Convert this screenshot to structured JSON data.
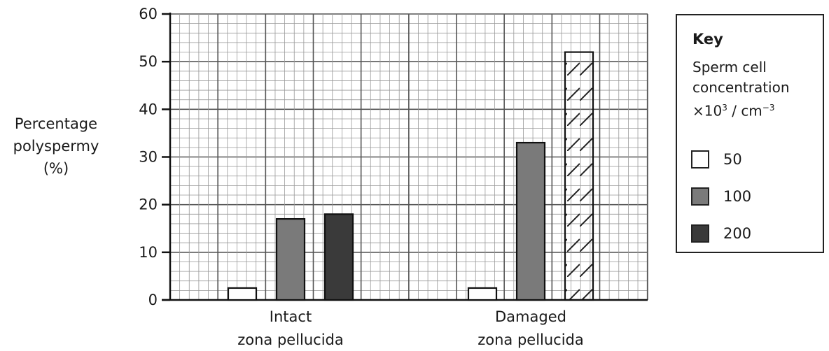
{
  "chart_data": {
    "type": "bar",
    "ylabel": [
      "Percentage",
      "polyspermy",
      "(%)"
    ],
    "ylim": [
      0,
      60
    ],
    "yticks": [
      0,
      10,
      20,
      30,
      40,
      50,
      60
    ],
    "categories": [
      [
        "Intact",
        "zona pellucida"
      ],
      [
        "Damaged",
        "zona pellucida"
      ]
    ],
    "series": [
      {
        "name": "50",
        "values": [
          2.5,
          2.5
        ],
        "fill": "#ffffff"
      },
      {
        "name": "100",
        "values": [
          17,
          33
        ],
        "fill": "#7a7a7a"
      },
      {
        "name": "200",
        "values": [
          18,
          52
        ],
        "fill": "#3a3a3a"
      }
    ],
    "hatched_bar": {
      "series": "200",
      "category": 1
    },
    "grid": true
  },
  "key": {
    "title": "Key",
    "line1": "Sperm cell",
    "line2": "concentration",
    "line3_prefix": "×10",
    "line3_sup1": "3",
    "line3_mid": " / cm",
    "line3_sup2": "−3"
  }
}
